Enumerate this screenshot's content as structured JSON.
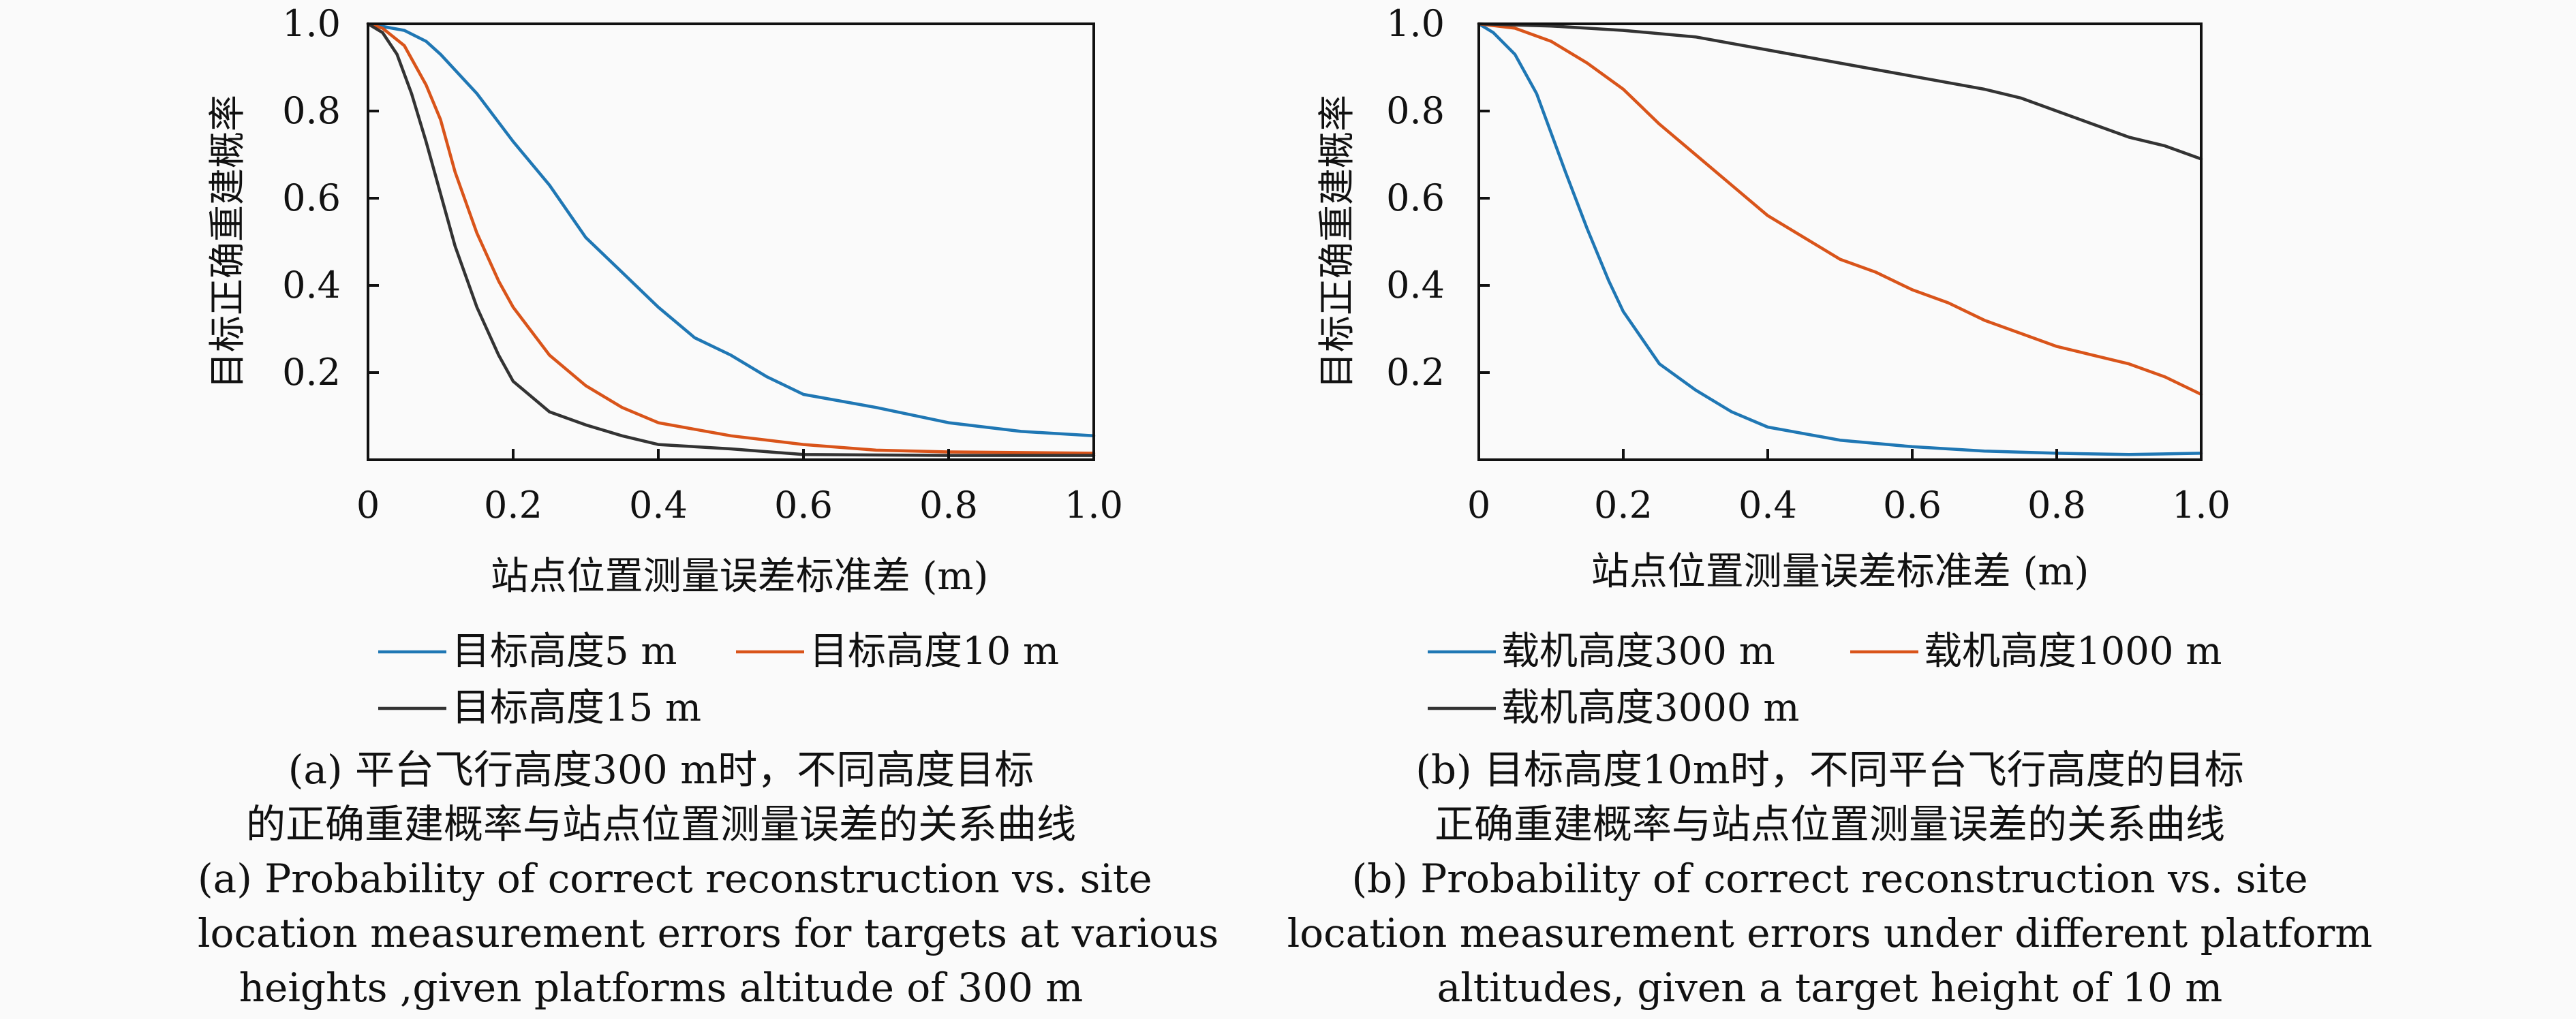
{
  "chart_data": [
    {
      "type": "line",
      "title": "",
      "xlabel": "站点位置测量误差标准差 (m)",
      "ylabel": "目标正确重建概率",
      "xlim": [
        0,
        1.0
      ],
      "ylim": [
        0,
        1.0
      ],
      "x_ticks": [
        "0",
        "0.2",
        "0.4",
        "0.6",
        "0.8",
        "1.0"
      ],
      "y_ticks": [
        "0.2",
        "0.4",
        "0.6",
        "0.8",
        "1.0"
      ],
      "grid": false,
      "legend_position": "below",
      "series": [
        {
          "name": "目标高度5 m",
          "color": "#1f77b4",
          "x": [
            0,
            0.05,
            0.08,
            0.1,
            0.15,
            0.2,
            0.25,
            0.3,
            0.35,
            0.4,
            0.45,
            0.5,
            0.55,
            0.6,
            0.7,
            0.8,
            0.9,
            1.0
          ],
          "y": [
            1.0,
            0.985,
            0.96,
            0.93,
            0.84,
            0.73,
            0.63,
            0.51,
            0.43,
            0.35,
            0.28,
            0.24,
            0.19,
            0.15,
            0.12,
            0.085,
            0.065,
            0.055
          ]
        },
        {
          "name": "目标高度10 m",
          "color": "#d9541a",
          "x": [
            0,
            0.02,
            0.05,
            0.08,
            0.1,
            0.12,
            0.15,
            0.18,
            0.2,
            0.25,
            0.3,
            0.35,
            0.4,
            0.5,
            0.6,
            0.7,
            0.8,
            1.0
          ],
          "y": [
            1.0,
            0.99,
            0.95,
            0.86,
            0.78,
            0.66,
            0.52,
            0.41,
            0.35,
            0.24,
            0.17,
            0.12,
            0.085,
            0.055,
            0.035,
            0.022,
            0.018,
            0.015
          ]
        },
        {
          "name": "目标高度15 m",
          "color": "#333333",
          "x": [
            0,
            0.02,
            0.04,
            0.06,
            0.08,
            0.1,
            0.12,
            0.15,
            0.18,
            0.2,
            0.25,
            0.3,
            0.35,
            0.4,
            0.5,
            0.6,
            0.8,
            1.0
          ],
          "y": [
            1.0,
            0.98,
            0.93,
            0.84,
            0.73,
            0.61,
            0.49,
            0.35,
            0.24,
            0.18,
            0.11,
            0.08,
            0.055,
            0.035,
            0.025,
            0.012,
            0.01,
            0.01
          ]
        }
      ]
    },
    {
      "type": "line",
      "title": "",
      "xlabel": "站点位置测量误差标准差 (m)",
      "ylabel": "目标正确重建概率",
      "xlim": [
        0,
        1.0
      ],
      "ylim": [
        0,
        1.0
      ],
      "x_ticks": [
        "0",
        "0.2",
        "0.4",
        "0.6",
        "0.8",
        "1.0"
      ],
      "y_ticks": [
        "0.2",
        "0.4",
        "0.6",
        "0.8",
        "1.0"
      ],
      "grid": false,
      "legend_position": "below",
      "series": [
        {
          "name": "载机高度300 m",
          "color": "#1f77b4",
          "x": [
            0,
            0.02,
            0.05,
            0.08,
            0.1,
            0.12,
            0.15,
            0.18,
            0.2,
            0.25,
            0.3,
            0.35,
            0.4,
            0.5,
            0.6,
            0.7,
            0.8,
            0.9,
            1.0
          ],
          "y": [
            1.0,
            0.98,
            0.93,
            0.84,
            0.75,
            0.66,
            0.53,
            0.41,
            0.34,
            0.22,
            0.16,
            0.11,
            0.075,
            0.045,
            0.03,
            0.02,
            0.015,
            0.012,
            0.015
          ]
        },
        {
          "name": "载机高度1000 m",
          "color": "#d9541a",
          "x": [
            0,
            0.05,
            0.1,
            0.15,
            0.2,
            0.25,
            0.3,
            0.35,
            0.4,
            0.45,
            0.5,
            0.55,
            0.6,
            0.65,
            0.7,
            0.75,
            0.8,
            0.85,
            0.9,
            0.95,
            1.0
          ],
          "y": [
            1.0,
            0.99,
            0.96,
            0.91,
            0.85,
            0.77,
            0.7,
            0.63,
            0.56,
            0.51,
            0.46,
            0.43,
            0.39,
            0.36,
            0.32,
            0.29,
            0.26,
            0.24,
            0.22,
            0.19,
            0.15
          ]
        },
        {
          "name": "载机高度3000 m",
          "color": "#333333",
          "x": [
            0,
            0.1,
            0.2,
            0.3,
            0.4,
            0.5,
            0.6,
            0.7,
            0.75,
            0.8,
            0.85,
            0.9,
            0.95,
            1.0
          ],
          "y": [
            1.0,
            0.995,
            0.985,
            0.97,
            0.94,
            0.91,
            0.88,
            0.85,
            0.83,
            0.8,
            0.77,
            0.74,
            0.72,
            0.69
          ]
        }
      ]
    }
  ],
  "captions": [
    {
      "zh": [
        "(a) 平台飞行高度300 m时，不同高度目标",
        "的正确重建概率与站点位置测量误差的关系曲线"
      ],
      "en": [
        "(a) Probability of correct reconstruction vs. site",
        "location measurement errors for targets at various",
        "heights ,given  platforms altitude of 300 m"
      ]
    },
    {
      "zh": [
        "(b) 目标高度10m时，不同平台飞行高度的目标",
        "正确重建概率与站点位置测量误差的关系曲线"
      ],
      "en": [
        "(b) Probability of correct reconstruction vs. site",
        "location measurement errors under different platform",
        "altitudes, given a target height of 10 m"
      ]
    }
  ]
}
